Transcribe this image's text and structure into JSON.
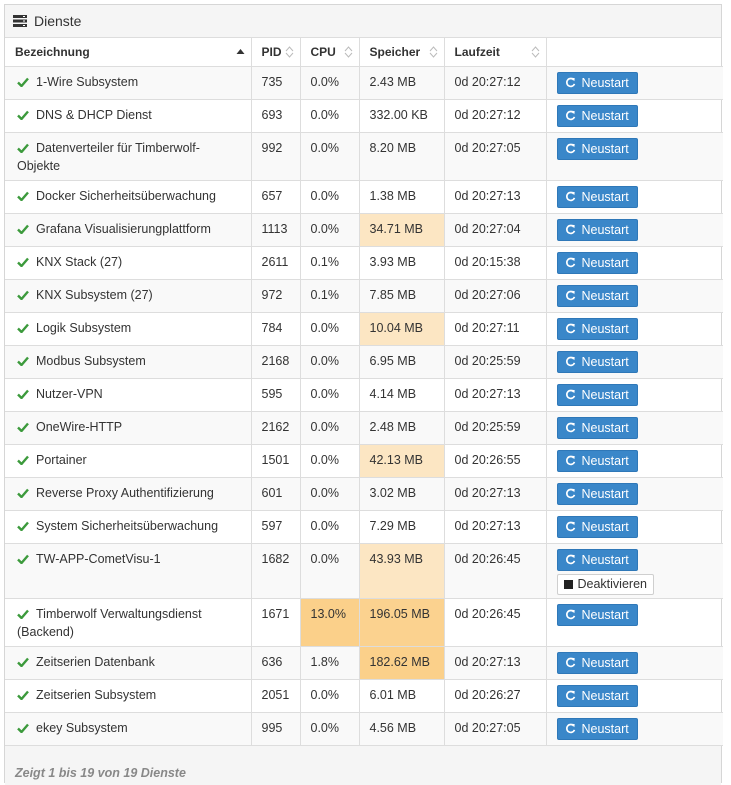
{
  "panel": {
    "title": "Dienste",
    "icon": "server-icon"
  },
  "columns": [
    "Bezeichnung",
    "PID",
    "CPU",
    "Speicher",
    "Laufzeit",
    ""
  ],
  "restart_label": "Neustart",
  "deactivate_label": "Deaktivieren",
  "colors": {
    "accent": "#3a87c9",
    "check": "#3c9a3c",
    "warn_light": "#fce6c3",
    "warn_strong": "#fbd28f"
  },
  "rows": [
    {
      "name": "1-Wire Subsystem",
      "pid": "735",
      "cpu": "0.0%",
      "mem": "2.43 MB",
      "time": "0d 20:27:12"
    },
    {
      "name": "DNS & DHCP Dienst",
      "pid": "693",
      "cpu": "0.0%",
      "mem": "332.00 KB",
      "time": "0d 20:27:12"
    },
    {
      "name": "Datenverteiler für Timberwolf-Objekte",
      "pid": "992",
      "cpu": "0.0%",
      "mem": "8.20 MB",
      "time": "0d 20:27:05"
    },
    {
      "name": "Docker Sicherheitsüberwachung",
      "pid": "657",
      "cpu": "0.0%",
      "mem": "1.38 MB",
      "time": "0d 20:27:13"
    },
    {
      "name": "Grafana Visualisierungplattform",
      "pid": "1113",
      "cpu": "0.0%",
      "mem": "34.71 MB",
      "time": "0d 20:27:04"
    },
    {
      "name": "KNX Stack (27)",
      "pid": "2611",
      "cpu": "0.1%",
      "mem": "3.93 MB",
      "time": "0d 20:15:38"
    },
    {
      "name": "KNX Subsystem (27)",
      "pid": "972",
      "cpu": "0.1%",
      "mem": "7.85 MB",
      "time": "0d 20:27:06"
    },
    {
      "name": "Logik Subsystem",
      "pid": "784",
      "cpu": "0.0%",
      "mem": "10.04 MB",
      "time": "0d 20:27:11"
    },
    {
      "name": "Modbus Subsystem",
      "pid": "2168",
      "cpu": "0.0%",
      "mem": "6.95 MB",
      "time": "0d 20:25:59"
    },
    {
      "name": "Nutzer-VPN",
      "pid": "595",
      "cpu": "0.0%",
      "mem": "4.14 MB",
      "time": "0d 20:27:13"
    },
    {
      "name": "OneWire-HTTP",
      "pid": "2162",
      "cpu": "0.0%",
      "mem": "2.48 MB",
      "time": "0d 20:25:59"
    },
    {
      "name": "Portainer",
      "pid": "1501",
      "cpu": "0.0%",
      "mem": "42.13 MB",
      "time": "0d 20:26:55"
    },
    {
      "name": "Reverse Proxy Authentifizierung",
      "pid": "601",
      "cpu": "0.0%",
      "mem": "3.02 MB",
      "time": "0d 20:27:13"
    },
    {
      "name": "System Sicherheitsüberwachung",
      "pid": "597",
      "cpu": "0.0%",
      "mem": "7.29 MB",
      "time": "0d 20:27:13"
    },
    {
      "name": "TW-APP-CometVisu-1",
      "pid": "1682",
      "cpu": "0.0%",
      "mem": "43.93 MB",
      "time": "0d 20:26:45"
    },
    {
      "name": "Timberwolf Verwaltungsdienst (Backend)",
      "pid": "1671",
      "cpu": "13.0%",
      "mem": "196.05 MB",
      "time": "0d 20:26:45"
    },
    {
      "name": "Zeitserien Datenbank",
      "pid": "636",
      "cpu": "1.8%",
      "mem": "182.62 MB",
      "time": "0d 20:27:13"
    },
    {
      "name": "Zeitserien Subsystem",
      "pid": "2051",
      "cpu": "0.0%",
      "mem": "6.01 MB",
      "time": "0d 20:26:27"
    },
    {
      "name": "ekey Subsystem",
      "pid": "995",
      "cpu": "0.0%",
      "mem": "4.56 MB",
      "time": "0d 20:27:05"
    }
  ],
  "footer": "Zeigt 1 bis 19 von 19 Dienste"
}
